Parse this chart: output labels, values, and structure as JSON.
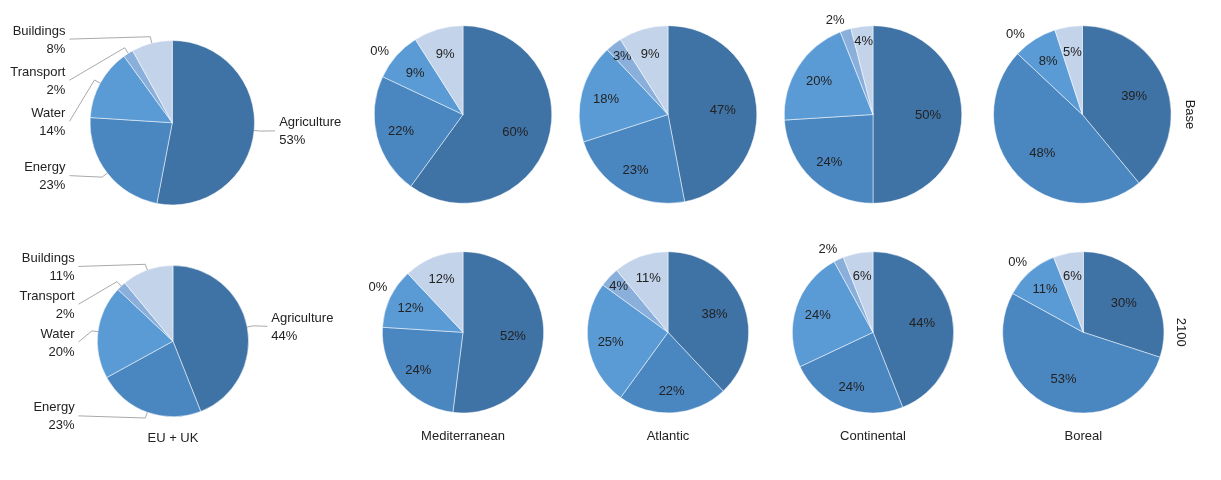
{
  "chart_data": [
    {
      "type": "pie",
      "categories": [
        "Agriculture",
        "Energy",
        "Water",
        "Transport",
        "Buildings"
      ],
      "values": [
        53,
        23,
        14,
        2,
        8
      ],
      "value_labels": [
        "53%",
        "23%",
        "14%",
        "2%",
        "8%"
      ],
      "data_labels": true,
      "colors": [
        "#3f72a5",
        "#4a86c0",
        "#5b9bd5",
        "#8aafdb",
        "#c3d3ea"
      ]
    },
    {
      "type": "pie",
      "categories": [
        null,
        null,
        null,
        null,
        null
      ],
      "values": [
        60,
        22,
        9,
        0,
        9
      ],
      "value_labels": [
        "60%",
        "22%",
        "9%",
        "0%",
        "9%"
      ],
      "data_labels": true,
      "colors": [
        "#3f72a5",
        "#4a86c0",
        "#5b9bd5",
        "#8aafdb",
        "#c3d3ea"
      ]
    },
    {
      "type": "pie",
      "categories": [
        null,
        null,
        null,
        null,
        null
      ],
      "values": [
        47,
        23,
        18,
        3,
        9
      ],
      "value_labels": [
        "47%",
        "23%",
        "18%",
        "3%",
        "9%"
      ],
      "data_labels": true,
      "colors": [
        "#3f72a5",
        "#4a86c0",
        "#5b9bd5",
        "#8aafdb",
        "#c3d3ea"
      ]
    },
    {
      "type": "pie",
      "categories": [
        null,
        null,
        null,
        null,
        null
      ],
      "values": [
        50,
        24,
        20,
        2,
        4
      ],
      "value_labels": [
        "50%",
        "24%",
        "20%",
        "2%",
        "4%"
      ],
      "data_labels": true,
      "colors": [
        "#3f72a5",
        "#4a86c0",
        "#5b9bd5",
        "#8aafdb",
        "#c3d3ea"
      ]
    },
    {
      "type": "pie",
      "categories": [
        null,
        null,
        null,
        null,
        null
      ],
      "values": [
        39,
        48,
        8,
        0,
        5
      ],
      "value_labels": [
        "39%",
        "48%",
        "8%",
        "0%",
        "5%"
      ],
      "data_labels": true,
      "colors": [
        "#3f72a5",
        "#4a86c0",
        "#5b9bd5",
        "#8aafdb",
        "#c3d3ea"
      ],
      "annotations": [
        "Base"
      ]
    },
    {
      "type": "pie",
      "categories": [
        "Agriculture",
        "Energy",
        "Water",
        "Transport",
        "Buildings"
      ],
      "values": [
        44,
        23,
        20,
        2,
        11
      ],
      "value_labels": [
        "44%",
        "23%",
        "20%",
        "2%",
        "11%"
      ],
      "data_labels": true,
      "colors": [
        "#3f72a5",
        "#4a86c0",
        "#5b9bd5",
        "#8aafdb",
        "#c3d3ea"
      ],
      "xlabel": "EU + UK"
    },
    {
      "type": "pie",
      "categories": [
        null,
        null,
        null,
        null,
        null
      ],
      "values": [
        52,
        24,
        12,
        0,
        12
      ],
      "value_labels": [
        "52%",
        "24%",
        "12%",
        "0%",
        "12%"
      ],
      "data_labels": true,
      "colors": [
        "#3f72a5",
        "#4a86c0",
        "#5b9bd5",
        "#8aafdb",
        "#c3d3ea"
      ],
      "xlabel": "Mediterranean"
    },
    {
      "type": "pie",
      "categories": [
        null,
        null,
        null,
        null,
        null
      ],
      "values": [
        38,
        22,
        25,
        4,
        11
      ],
      "value_labels": [
        "38%",
        "22%",
        "25%",
        "4%",
        "11%"
      ],
      "data_labels": true,
      "colors": [
        "#3f72a5",
        "#4a86c0",
        "#5b9bd5",
        "#8aafdb",
        "#c3d3ea"
      ],
      "xlabel": "Atlantic"
    },
    {
      "type": "pie",
      "categories": [
        null,
        null,
        null,
        null,
        null
      ],
      "values": [
        44,
        24,
        24,
        2,
        6
      ],
      "value_labels": [
        "44%",
        "24%",
        "24%",
        "2%",
        "6%"
      ],
      "data_labels": true,
      "colors": [
        "#3f72a5",
        "#4a86c0",
        "#5b9bd5",
        "#8aafdb",
        "#c3d3ea"
      ],
      "xlabel": "Continental"
    },
    {
      "type": "pie",
      "categories": [
        null,
        null,
        null,
        null,
        null
      ],
      "values": [
        30,
        53,
        11,
        0,
        6
      ],
      "value_labels": [
        "30%",
        "53%",
        "11%",
        "0%",
        "6%"
      ],
      "data_labels": true,
      "colors": [
        "#3f72a5",
        "#4a86c0",
        "#5b9bd5",
        "#8aafdb",
        "#c3d3ea"
      ],
      "xlabel": "Boreal",
      "annotations": [
        "2100"
      ]
    }
  ]
}
